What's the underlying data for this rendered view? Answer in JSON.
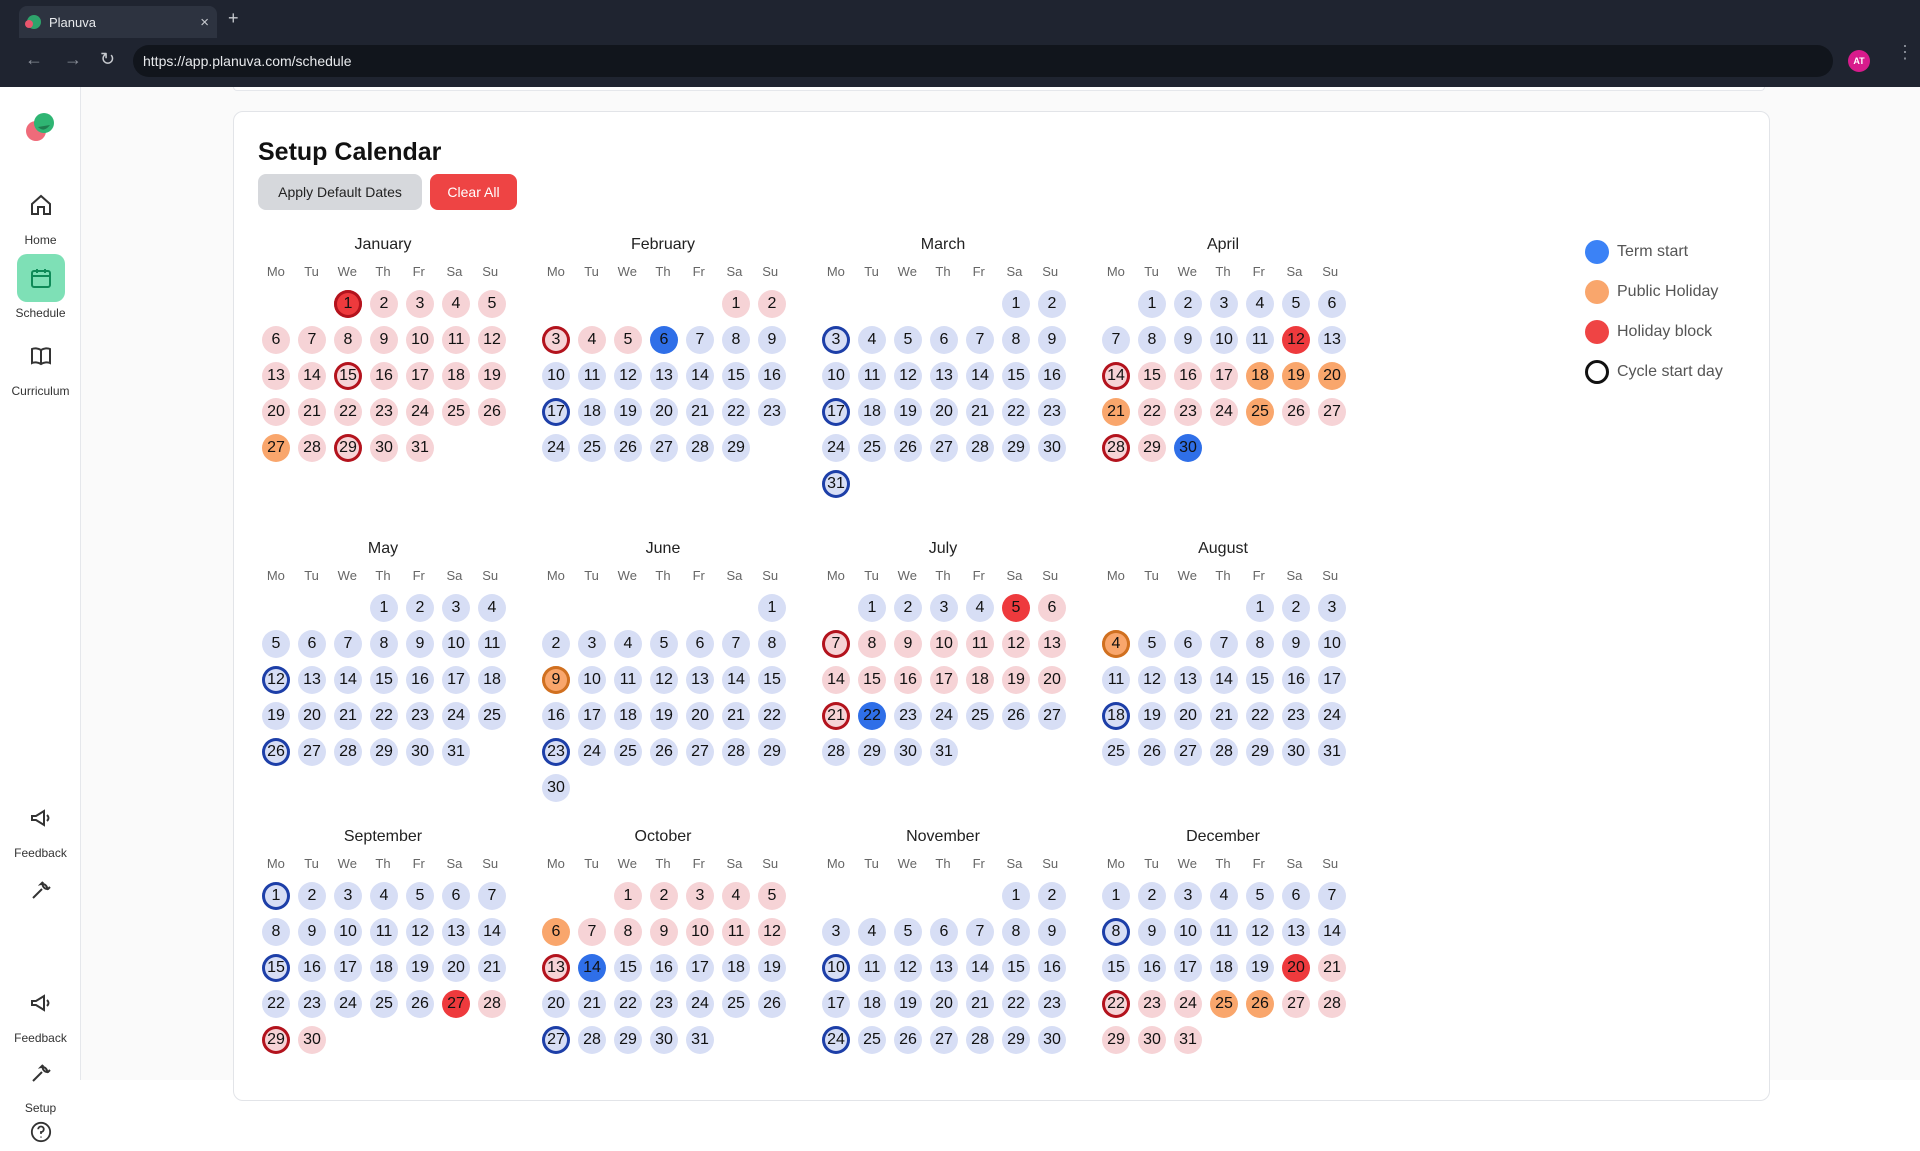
{
  "browser": {
    "tab_title": "Planuva",
    "url": "https://app.planuva.com/schedule",
    "avatar": "AT",
    "new_tab": "+",
    "close": "×"
  },
  "sidebar": {
    "items": [
      {
        "label": "Home",
        "icon": "home-icon"
      },
      {
        "label": "Schedule",
        "icon": "calendar-icon"
      },
      {
        "label": "Curriculum",
        "icon": "book-icon"
      },
      {
        "label": "Feedback",
        "icon": "megaphone-icon"
      },
      {
        "label": "",
        "icon": "wrench-icon"
      },
      {
        "label": "Feedback",
        "icon": "megaphone-icon"
      },
      {
        "label": "Setup",
        "icon": "wrench-icon"
      },
      {
        "label": "",
        "icon": "help-icon"
      }
    ]
  },
  "page": {
    "title": "Setup Calendar",
    "apply_default": "Apply Default Dates",
    "clear_all": "Clear All"
  },
  "weekdays": [
    "Mo",
    "Tu",
    "We",
    "Th",
    "Fr",
    "Sa",
    "Su"
  ],
  "legend": [
    {
      "label": "Term start",
      "color": "#3b82f6"
    },
    {
      "label": "Public Holiday",
      "color": "#f9a66c"
    },
    {
      "label": "Holiday block",
      "color": "#ef4444"
    },
    {
      "label": "Cycle start day",
      "color": "outline"
    }
  ],
  "months": [
    {
      "name": "January",
      "offset": 2,
      "days": 31,
      "base": "hol",
      "special": {
        "1": "block-red",
        "15": "hol-red",
        "27": "pub",
        "29": "hol-red"
      }
    },
    {
      "name": "February",
      "offset": 5,
      "days": 29,
      "base": "hol",
      "term_from": 6,
      "special": {
        "3": "hol-red",
        "6": "start",
        "17": "term-blue"
      }
    },
    {
      "name": "March",
      "offset": 5,
      "days": 31,
      "base": "term",
      "special": {
        "3": "term-blue",
        "17": "term-blue",
        "31": "term-blue"
      }
    },
    {
      "name": "April",
      "offset": 1,
      "days": 30,
      "base": "term",
      "hol_from": 14,
      "special": {
        "12": "block",
        "14": "hol-red",
        "18": "pub",
        "19": "pub",
        "20": "pub",
        "21": "pub",
        "25": "pub",
        "28": "hol-red",
        "30": "start"
      }
    },
    {
      "name": "May",
      "offset": 3,
      "days": 31,
      "base": "term",
      "special": {
        "12": "term-blue",
        "26": "term-blue"
      }
    },
    {
      "name": "June",
      "offset": 6,
      "days": 30,
      "base": "term",
      "special": {
        "9": "pub-org",
        "23": "term-blue"
      }
    },
    {
      "name": "July",
      "offset": 1,
      "days": 31,
      "base": "term",
      "hol_range": [
        5,
        21
      ],
      "special": {
        "5": "block",
        "7": "hol-red",
        "21": "hol-red",
        "22": "start"
      }
    },
    {
      "name": "August",
      "offset": 4,
      "days": 31,
      "base": "term",
      "special": {
        "4": "pub-org",
        "18": "term-blue"
      }
    },
    {
      "name": "September",
      "offset": 0,
      "days": 30,
      "base": "term",
      "hol_from": 27,
      "special": {
        "1": "term-blue",
        "15": "term-blue",
        "27": "block",
        "29": "hol-red"
      }
    },
    {
      "name": "October",
      "offset": 2,
      "days": 31,
      "base": "hol",
      "term_from": 14,
      "special": {
        "6": "pub",
        "13": "hol-red",
        "14": "start",
        "27": "term-blue"
      }
    },
    {
      "name": "November",
      "offset": 5,
      "days": 30,
      "base": "term",
      "special": {
        "10": "term-blue",
        "24": "term-blue"
      }
    },
    {
      "name": "December",
      "offset": 0,
      "days": 31,
      "base": "term",
      "hol_from": 20,
      "special": {
        "8": "term-blue",
        "20": "block",
        "22": "hol-red",
        "25": "pub",
        "26": "pub"
      }
    }
  ]
}
